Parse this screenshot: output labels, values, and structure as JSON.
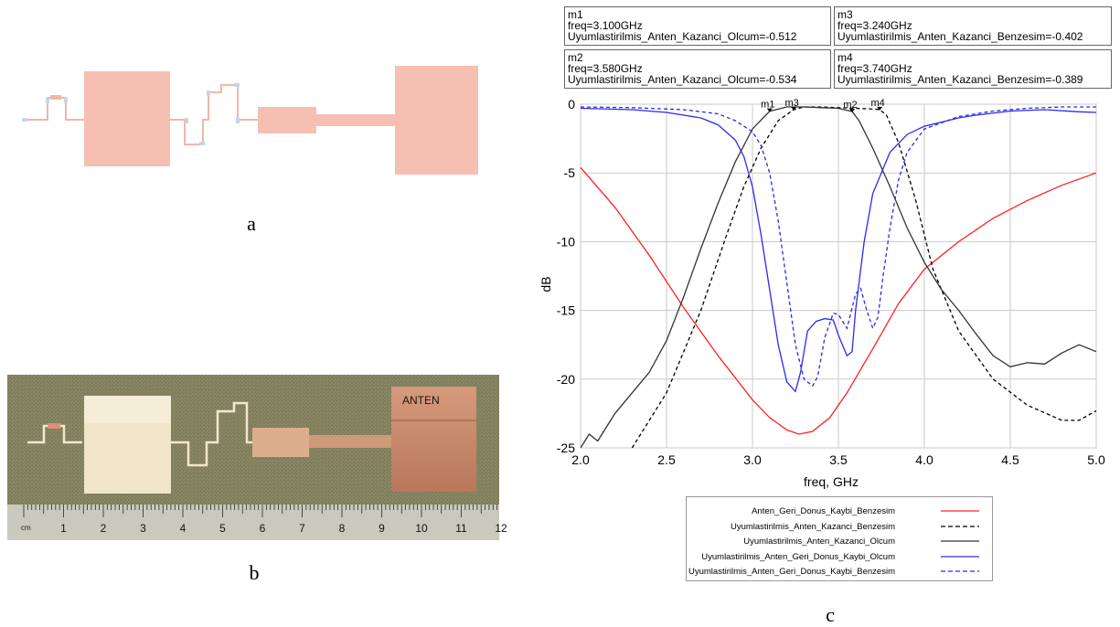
{
  "captions": {
    "a": "a",
    "b": "b",
    "c": "c"
  },
  "photo": {
    "antenna_label": "ANTEN",
    "ruler_unit": "cm",
    "ruler_numbers": [
      "1",
      "2",
      "3",
      "4",
      "5",
      "6",
      "7",
      "8",
      "9",
      "10",
      "11",
      "12"
    ]
  },
  "markers": [
    {
      "name": "m1",
      "freq": "freq=3.100GHz",
      "value": "Uyumlastirilmis_Anten_Kazanci_Olcum=-0.512"
    },
    {
      "name": "m3",
      "freq": "freq=3.240GHz",
      "value": "Uyumlastirilmis_Anten_Kazanci_Benzesim=-0.402"
    },
    {
      "name": "m2",
      "freq": "freq=3.580GHz",
      "value": "Uyumlastirilmis_Anten_Kazanci_Olcum=-0.534"
    },
    {
      "name": "m4",
      "freq": "freq=3.740GHz",
      "value": "Uyumlastirilmis_Anten_Kazanci_Benzesim=-0.389"
    }
  ],
  "chart_data": {
    "type": "line",
    "xlabel": "freq, GHz",
    "ylabel": "dB",
    "xlim": [
      2.0,
      5.0
    ],
    "ylim": [
      -25,
      0
    ],
    "xticks": [
      "2.0",
      "2.5",
      "3.0",
      "3.5",
      "4.0",
      "4.5",
      "5.0"
    ],
    "yticks": [
      "0",
      "-5",
      "-10",
      "-15",
      "-20",
      "-25"
    ],
    "grid": true,
    "legend_position": "bottom",
    "series": [
      {
        "name": "Anten_Geri_Donus_Kaybi_Benzesim",
        "color": "#ff2020",
        "dash": "solid",
        "x": [
          2.0,
          2.2,
          2.4,
          2.6,
          2.8,
          3.0,
          3.1,
          3.2,
          3.27,
          3.35,
          3.45,
          3.55,
          3.7,
          3.85,
          4.0,
          4.2,
          4.4,
          4.6,
          4.8,
          5.0
        ],
        "y": [
          -4.6,
          -7.5,
          -11.0,
          -14.8,
          -18.3,
          -21.5,
          -22.8,
          -23.7,
          -24.0,
          -23.8,
          -22.8,
          -21.0,
          -17.8,
          -14.5,
          -12.0,
          -10.0,
          -8.3,
          -7.0,
          -5.9,
          -5.0
        ]
      },
      {
        "name": "Uyumlastirilmis_Anten_Kazanci_Benzesim",
        "color": "#000000",
        "dash": "dashed",
        "x": [
          2.3,
          2.5,
          2.7,
          2.85,
          2.95,
          3.05,
          3.15,
          3.24,
          3.3,
          3.4,
          3.5,
          3.6,
          3.7,
          3.74,
          3.78,
          3.85,
          3.95,
          4.05,
          4.2,
          4.4,
          4.6,
          4.8,
          4.9,
          5.0
        ],
        "y": [
          -25.0,
          -21.0,
          -15.0,
          -9.5,
          -6.0,
          -3.2,
          -1.2,
          -0.4,
          -0.2,
          -0.2,
          -0.25,
          -0.3,
          -0.35,
          -0.39,
          -0.8,
          -2.8,
          -7.0,
          -12.0,
          -16.5,
          -20.0,
          -21.9,
          -23.0,
          -23.0,
          -22.3
        ]
      },
      {
        "name": "Uyumlastirilmis_Anten_Kazanci_Olcum",
        "color": "#333333",
        "dash": "solid",
        "x": [
          2.0,
          2.05,
          2.1,
          2.15,
          2.2,
          2.3,
          2.4,
          2.5,
          2.6,
          2.7,
          2.8,
          2.9,
          3.0,
          3.1,
          3.2,
          3.3,
          3.4,
          3.5,
          3.58,
          3.62,
          3.7,
          3.8,
          3.9,
          4.0,
          4.1,
          4.2,
          4.3,
          4.4,
          4.5,
          4.6,
          4.7,
          4.8,
          4.9,
          5.0
        ],
        "y": [
          -25.0,
          -24.0,
          -24.5,
          -23.5,
          -22.5,
          -21.0,
          -19.5,
          -17.2,
          -14.0,
          -10.5,
          -7.2,
          -4.2,
          -1.8,
          -0.51,
          -0.2,
          -0.2,
          -0.25,
          -0.3,
          -0.53,
          -1.2,
          -3.2,
          -6.0,
          -9.0,
          -11.5,
          -13.5,
          -15.0,
          -16.7,
          -18.3,
          -19.1,
          -18.8,
          -18.9,
          -18.1,
          -17.5,
          -18.0
        ]
      },
      {
        "name": "Uyumlastirilmis_Anten_Geri_Donus_Kaybi_Olcum",
        "color": "#2a2aee",
        "dash": "solid",
        "x": [
          2.0,
          2.3,
          2.5,
          2.7,
          2.8,
          2.9,
          2.95,
          3.0,
          3.05,
          3.1,
          3.15,
          3.2,
          3.25,
          3.28,
          3.32,
          3.37,
          3.42,
          3.47,
          3.5,
          3.55,
          3.58,
          3.6,
          3.65,
          3.7,
          3.8,
          3.9,
          4.0,
          4.1,
          4.2,
          4.3,
          4.5,
          4.7,
          4.9,
          5.0
        ],
        "y": [
          -0.3,
          -0.4,
          -0.6,
          -1.0,
          -1.5,
          -2.6,
          -3.8,
          -6.0,
          -9.5,
          -13.5,
          -17.5,
          -20.2,
          -20.9,
          -19.5,
          -16.5,
          -15.8,
          -15.6,
          -15.7,
          -16.8,
          -18.3,
          -18.0,
          -15.0,
          -10.0,
          -6.5,
          -3.5,
          -2.2,
          -1.6,
          -1.3,
          -1.0,
          -0.8,
          -0.5,
          -0.4,
          -0.55,
          -0.6
        ]
      },
      {
        "name": "Uyumlastirilmis_Anten_Geri_Donus_Kaybi_Benzesim",
        "color": "#2a2aee",
        "dash": "dashed",
        "x": [
          2.0,
          2.3,
          2.6,
          2.8,
          2.9,
          3.0,
          3.05,
          3.1,
          3.15,
          3.2,
          3.25,
          3.3,
          3.35,
          3.38,
          3.42,
          3.47,
          3.5,
          3.55,
          3.6,
          3.63,
          3.66,
          3.7,
          3.73,
          3.76,
          3.8,
          3.85,
          3.9,
          4.0,
          4.2,
          4.4,
          4.6,
          4.8,
          5.0
        ],
        "y": [
          -0.2,
          -0.25,
          -0.4,
          -0.7,
          -1.2,
          -2.0,
          -3.0,
          -5.0,
          -8.5,
          -13.0,
          -17.5,
          -20.0,
          -20.5,
          -19.8,
          -17.0,
          -15.2,
          -15.3,
          -16.3,
          -13.8,
          -13.4,
          -14.8,
          -16.3,
          -15.5,
          -12.5,
          -9.0,
          -5.5,
          -3.5,
          -1.8,
          -0.9,
          -0.5,
          -0.3,
          -0.2,
          -0.2
        ]
      }
    ]
  }
}
